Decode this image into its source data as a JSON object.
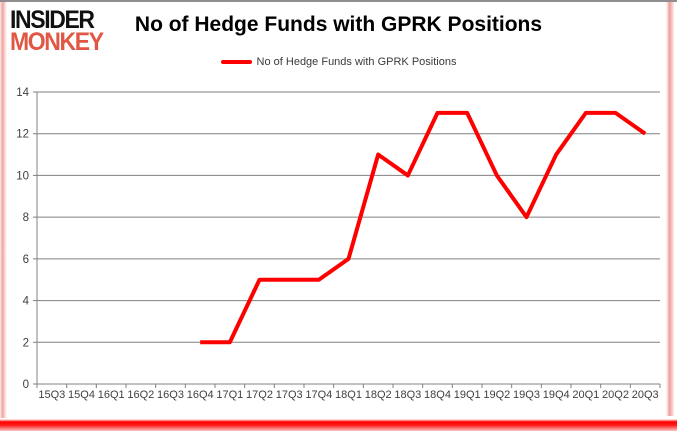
{
  "logo": {
    "line1": "INSIDER",
    "line2": "MONKEY"
  },
  "header": {
    "title": "No of Hedge Funds with GPRK Positions"
  },
  "legend": {
    "label": "No of Hedge Funds with GPRK Positions"
  },
  "colors": {
    "series_line": "#ff0000",
    "gridline": "#808080",
    "axis_line": "#808080",
    "tick_text": "#3f3f3f",
    "logo_accent": "#e25744",
    "logo_dark": "#111111",
    "frame_glow": "#f2a39e",
    "bottom_bar": "#ff0000",
    "top_border": "#8e8e8e"
  },
  "chart_data": {
    "type": "line",
    "title": "No of Hedge Funds with GPRK Positions",
    "categories": [
      "15Q3",
      "15Q4",
      "16Q1",
      "16Q2",
      "16Q3",
      "16Q4",
      "17Q1",
      "17Q2",
      "17Q3",
      "17Q4",
      "18Q1",
      "18Q2",
      "18Q3",
      "18Q4",
      "19Q1",
      "19Q2",
      "19Q3",
      "19Q4",
      "20Q1",
      "20Q2",
      "20Q3"
    ],
    "series": [
      {
        "name": "No of Hedge Funds with GPRK Positions",
        "color": "#ff0000",
        "values": [
          null,
          null,
          null,
          null,
          null,
          2,
          2,
          5,
          5,
          5,
          6,
          11,
          10,
          13,
          13,
          10,
          8,
          11,
          13,
          13,
          12
        ]
      }
    ],
    "xlabel": "",
    "ylabel": "",
    "ylim": [
      0,
      14
    ],
    "yticks": [
      0,
      2,
      4,
      6,
      8,
      10,
      12,
      14
    ],
    "grid": true,
    "legend_position": "top-center"
  }
}
